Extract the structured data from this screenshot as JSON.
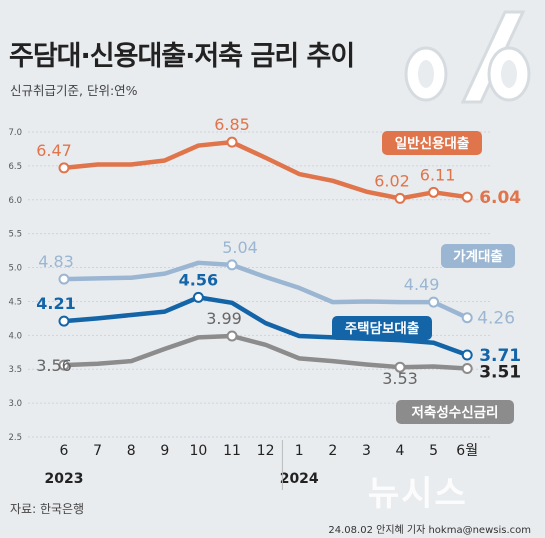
{
  "header": {
    "title": "주담대·신용대출·저축 금리 추이",
    "subtitle": "신규취급기준, 단위:연%"
  },
  "footer": {
    "source": "자료: 한국은행",
    "credit": "24.08.02 안지혜 기자 hokma@newsis.com",
    "watermark": "뉴시스"
  },
  "colors": {
    "personal_credit": "#e0744b",
    "household": "#9ab6d2",
    "mortgage": "#1464a8",
    "savings": "#8c8c8c",
    "background": "#e9ecef"
  },
  "chart_data": {
    "type": "line",
    "categories": [
      "6",
      "7",
      "8",
      "9",
      "10",
      "11",
      "12",
      "1",
      "2",
      "3",
      "4",
      "5",
      "6월"
    ],
    "year_labels": [
      {
        "label": "2023",
        "category_index": 0
      },
      {
        "label": "2024",
        "category_index": 7
      }
    ],
    "ylim": [
      2.5,
      7.0
    ],
    "yticks": [
      "2.5",
      "3.0",
      "3.5",
      "4.0",
      "4.5",
      "5.0",
      "5.5",
      "6.0",
      "6.5",
      "7.0"
    ],
    "grid": true,
    "series": [
      {
        "name": "일반신용대출",
        "color_key": "personal_credit",
        "values": [
          6.47,
          6.52,
          6.52,
          6.58,
          6.8,
          6.85,
          6.62,
          6.38,
          6.28,
          6.12,
          6.02,
          6.11,
          6.04
        ],
        "labels": [
          {
            "index": 0,
            "text": "6.47"
          },
          {
            "index": 5,
            "text": "6.85"
          },
          {
            "index": 10,
            "text": "6.02"
          },
          {
            "index": 11,
            "text": "6.11"
          },
          {
            "index": 12,
            "text": "6.04"
          }
        ]
      },
      {
        "name": "가계대출",
        "color_key": "household",
        "values": [
          4.83,
          4.84,
          4.85,
          4.91,
          5.07,
          5.04,
          4.86,
          4.7,
          4.49,
          4.5,
          4.49,
          4.49,
          4.26
        ],
        "labels": [
          {
            "index": 0,
            "text": "4.83"
          },
          {
            "index": 5,
            "text": "5.04"
          },
          {
            "index": 11,
            "text": "4.49"
          },
          {
            "index": 12,
            "text": "4.26"
          }
        ]
      },
      {
        "name": "주택담보대출",
        "color_key": "mortgage",
        "values": [
          4.21,
          4.25,
          4.3,
          4.35,
          4.56,
          4.48,
          4.18,
          3.99,
          3.97,
          3.95,
          3.93,
          3.89,
          3.71
        ],
        "labels": [
          {
            "index": 0,
            "text": "4.21"
          },
          {
            "index": 4,
            "text": "4.56"
          },
          {
            "index": 12,
            "text": "3.71"
          }
        ]
      },
      {
        "name": "저축성수신금리",
        "color_key": "savings",
        "values": [
          3.56,
          3.58,
          3.62,
          3.8,
          3.97,
          3.99,
          3.86,
          3.66,
          3.62,
          3.57,
          3.53,
          3.54,
          3.51
        ],
        "labels": [
          {
            "index": 0,
            "text": "3.56"
          },
          {
            "index": 5,
            "text": "3.99"
          },
          {
            "index": 10,
            "text": "3.53"
          },
          {
            "index": 12,
            "text": "3.51"
          }
        ]
      }
    ]
  }
}
